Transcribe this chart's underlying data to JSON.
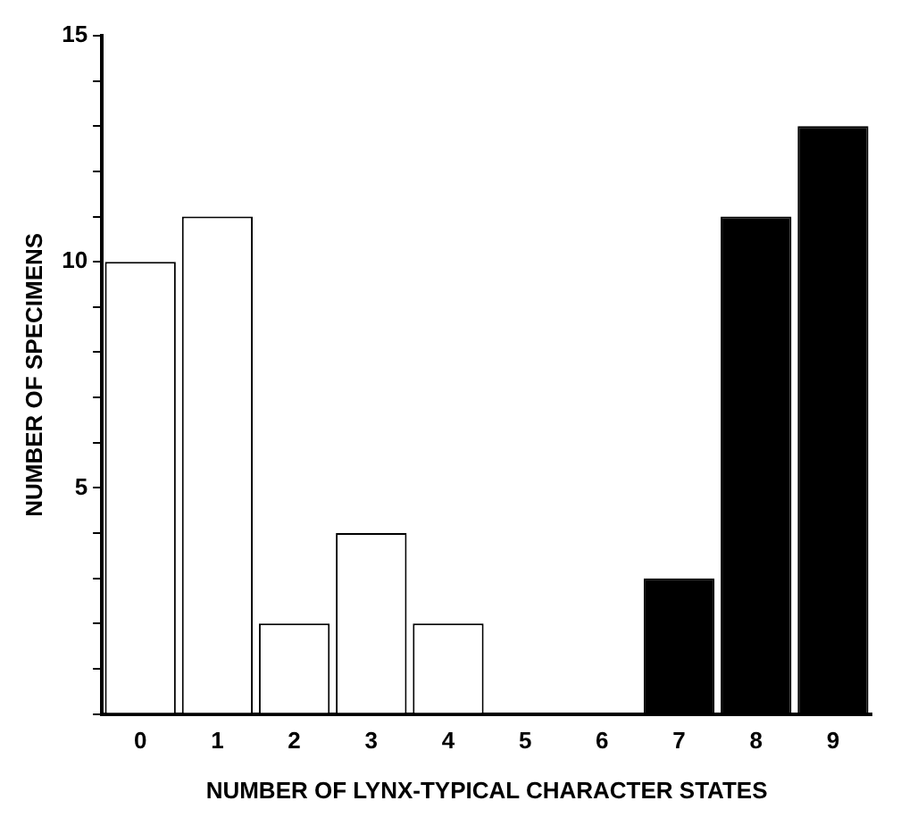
{
  "chart_data": {
    "type": "bar",
    "xlabel": "NUMBER OF LYNX-TYPICAL CHARACTER STATES",
    "ylabel": "NUMBER OF SPECIMENS",
    "categories": [
      "0",
      "1",
      "2",
      "3",
      "4",
      "5",
      "6",
      "7",
      "8",
      "9"
    ],
    "values": [
      10,
      11,
      2,
      4,
      2,
      0,
      0,
      3,
      11,
      13
    ],
    "colors": [
      "#ffffff",
      "#ffffff",
      "#ffffff",
      "#ffffff",
      "#ffffff",
      "#ffffff",
      "#ffffff",
      "#000000",
      "#000000",
      "#000000"
    ],
    "ylim": [
      0,
      15
    ],
    "yticks": [
      {
        "value": 0,
        "label": null
      },
      {
        "value": 1,
        "label": null
      },
      {
        "value": 2,
        "label": null
      },
      {
        "value": 3,
        "label": null
      },
      {
        "value": 4,
        "label": null
      },
      5,
      {
        "value": 6,
        "label": null
      },
      {
        "value": 7,
        "label": null
      },
      {
        "value": 8,
        "label": null
      },
      {
        "value": 9,
        "label": null
      },
      10,
      {
        "value": 11,
        "label": null
      },
      {
        "value": 12,
        "label": null
      },
      {
        "value": 13,
        "label": null
      },
      {
        "value": 14,
        "label": null
      },
      15
    ],
    "grid": false,
    "legend": false
  }
}
